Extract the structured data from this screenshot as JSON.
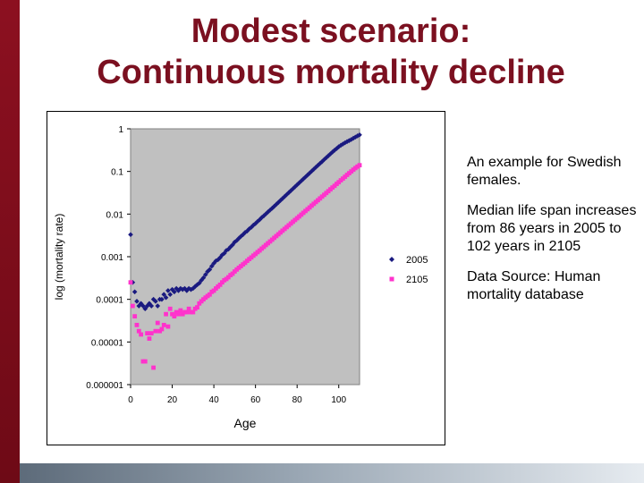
{
  "slide": {
    "title_line1": "Modest scenario:",
    "title_line2": "Continuous mortality decline",
    "notes": [
      "An example for Swedish females.",
      "Median life span increases from 86 years in 2005 to 102 years in 2105",
      "Data Source: Human mortality database"
    ]
  },
  "colors": {
    "title": "#7b1020",
    "plot_background": "#c0c0c0",
    "series_2005": "#1a1a80",
    "series_2105": "#ff33cc",
    "left_bar": "#8c1020"
  },
  "chart_data": {
    "type": "scatter",
    "title": "",
    "xlabel": "Age",
    "ylabel": "log (mortality rate)",
    "y_scale": "log",
    "xlim": [
      0,
      110
    ],
    "ylim": [
      1e-06,
      1
    ],
    "x_ticks": [
      "0",
      "20",
      "40",
      "60",
      "80",
      "100"
    ],
    "y_ticks": [
      "1",
      "0.1",
      "0.01",
      "0.001",
      "0.0001",
      "0.00001",
      "0.000001"
    ],
    "y_tick_values": [
      1,
      0.1,
      0.01,
      0.001,
      0.0001,
      1e-05,
      1e-06
    ],
    "x_tick_values": [
      0,
      20,
      40,
      60,
      80,
      100
    ],
    "grid": false,
    "legend_position": "right",
    "series": [
      {
        "name": "2005",
        "marker": "diamond",
        "x": [
          0,
          1,
          2,
          3,
          4,
          5,
          6,
          7,
          8,
          9,
          10,
          11,
          12,
          13,
          14,
          15,
          16,
          17,
          18,
          19,
          20,
          21,
          22,
          23,
          24,
          25,
          26,
          27,
          28,
          29,
          30,
          31,
          32,
          33,
          34,
          35,
          36,
          37,
          38,
          39,
          40,
          41,
          42,
          43,
          44,
          45,
          46,
          47,
          48,
          49,
          50,
          51,
          52,
          53,
          54,
          55,
          56,
          57,
          58,
          59,
          60,
          61,
          62,
          63,
          64,
          65,
          66,
          67,
          68,
          69,
          70,
          71,
          72,
          73,
          74,
          75,
          76,
          77,
          78,
          79,
          80,
          81,
          82,
          83,
          84,
          85,
          86,
          87,
          88,
          89,
          90,
          91,
          92,
          93,
          94,
          95,
          96,
          97,
          98,
          99,
          100,
          101,
          102,
          103,
          104,
          105,
          106,
          107,
          108,
          109,
          110
        ],
        "values": [
          0.0033,
          0.00025,
          0.00015,
          9e-05,
          7e-05,
          8e-05,
          7e-05,
          6e-05,
          7e-05,
          8e-05,
          7e-05,
          0.0001,
          9e-05,
          7e-05,
          0.0001,
          0.0001,
          0.00013,
          0.00011,
          0.00016,
          0.00013,
          0.00017,
          0.00015,
          0.00018,
          0.00016,
          0.00018,
          0.00017,
          0.00018,
          0.00016,
          0.00018,
          0.00017,
          0.00018,
          0.0002,
          0.00022,
          0.00024,
          0.00028,
          0.00032,
          0.00038,
          0.00045,
          0.0005,
          0.0006,
          0.0007,
          0.0008,
          0.00085,
          0.00095,
          0.0011,
          0.0012,
          0.0014,
          0.0015,
          0.0017,
          0.0019,
          0.0022,
          0.0024,
          0.0027,
          0.003,
          0.0033,
          0.0037,
          0.004,
          0.0045,
          0.0049,
          0.0055,
          0.006,
          0.0067,
          0.0074,
          0.0083,
          0.0091,
          0.0101,
          0.0112,
          0.0124,
          0.0137,
          0.0152,
          0.0169,
          0.0188,
          0.0209,
          0.0232,
          0.0258,
          0.0287,
          0.0319,
          0.0354,
          0.0393,
          0.0437,
          0.0486,
          0.054,
          0.06,
          0.0667,
          0.0741,
          0.0823,
          0.0914,
          0.1016,
          0.1129,
          0.1254,
          0.139,
          0.154,
          0.17,
          0.19,
          0.21,
          0.233,
          0.258,
          0.285,
          0.315,
          0.345,
          0.38,
          0.41,
          0.44,
          0.47,
          0.5,
          0.53,
          0.56,
          0.6,
          0.64,
          0.68,
          0.72
        ]
      },
      {
        "name": "2105",
        "marker": "square",
        "x": [
          0,
          1,
          2,
          3,
          4,
          5,
          6,
          7,
          8,
          9,
          10,
          11,
          12,
          13,
          14,
          15,
          16,
          17,
          18,
          19,
          20,
          21,
          22,
          23,
          24,
          25,
          26,
          27,
          28,
          29,
          30,
          31,
          32,
          33,
          34,
          35,
          36,
          37,
          38,
          39,
          40,
          41,
          42,
          43,
          44,
          45,
          46,
          47,
          48,
          49,
          50,
          51,
          52,
          53,
          54,
          55,
          56,
          57,
          58,
          59,
          60,
          61,
          62,
          63,
          64,
          65,
          66,
          67,
          68,
          69,
          70,
          71,
          72,
          73,
          74,
          75,
          76,
          77,
          78,
          79,
          80,
          81,
          82,
          83,
          84,
          85,
          86,
          87,
          88,
          89,
          90,
          91,
          92,
          93,
          94,
          95,
          96,
          97,
          98,
          99,
          100,
          101,
          102,
          103,
          104,
          105,
          106,
          107,
          108,
          109,
          110
        ],
        "values": [
          0.00025,
          7e-05,
          4e-05,
          2.5e-05,
          1.8e-05,
          1.5e-05,
          3.5e-06,
          3.5e-06,
          1.6e-05,
          1.2e-05,
          1.6e-05,
          2.5e-06,
          1.8e-05,
          2.8e-05,
          1.8e-05,
          2e-05,
          2.5e-05,
          4.5e-05,
          2.3e-05,
          6e-05,
          4.5e-05,
          4e-05,
          5e-05,
          4.5e-05,
          5.5e-05,
          4.5e-05,
          5e-05,
          5e-05,
          6e-05,
          5e-05,
          5e-05,
          6e-05,
          6.5e-05,
          8e-05,
          9e-05,
          0.0001,
          0.00011,
          0.00012,
          0.00013,
          0.00015,
          0.00016,
          0.00018,
          0.0002,
          0.00022,
          0.00025,
          0.00028,
          0.0003,
          0.00033,
          0.00037,
          0.0004,
          0.00045,
          0.0005,
          0.00055,
          0.0006,
          0.00066,
          0.00072,
          0.0008,
          0.00088,
          0.00096,
          0.00106,
          0.00116,
          0.00128,
          0.0014,
          0.00155,
          0.0017,
          0.00188,
          0.00207,
          0.00228,
          0.00251,
          0.00277,
          0.00305,
          0.00336,
          0.0037,
          0.00408,
          0.00449,
          0.00495,
          0.00545,
          0.006,
          0.0066,
          0.00727,
          0.008,
          0.0088,
          0.0097,
          0.0107,
          0.0118,
          0.013,
          0.0143,
          0.0158,
          0.0174,
          0.0192,
          0.0211,
          0.0233,
          0.0257,
          0.0283,
          0.0312,
          0.0344,
          0.038,
          0.042,
          0.046,
          0.051,
          0.056,
          0.062,
          0.068,
          0.075,
          0.083,
          0.091,
          0.1,
          0.11,
          0.12,
          0.13,
          0.14
        ]
      }
    ]
  }
}
